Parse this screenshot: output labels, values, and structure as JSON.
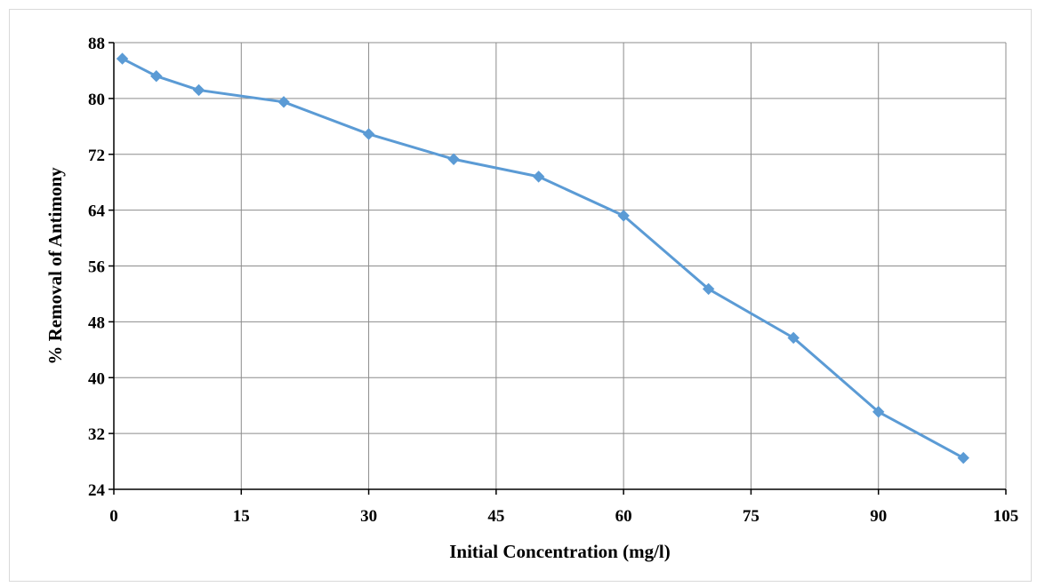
{
  "chart_data": {
    "type": "line",
    "title": "",
    "xlabel": "Initial Concentration (mg/l)",
    "ylabel": "% Removal of Antimony",
    "xlim": [
      0,
      105
    ],
    "ylim": [
      24,
      88
    ],
    "xticks": [
      0,
      15,
      30,
      45,
      60,
      75,
      90,
      105
    ],
    "yticks": [
      24,
      32,
      40,
      48,
      56,
      64,
      72,
      80,
      88
    ],
    "grid": true,
    "legend": "none",
    "marker": "diamond",
    "color": "#5b9bd5",
    "series": [
      {
        "x": [
          1,
          5,
          10,
          20,
          30,
          40,
          50,
          60,
          70,
          80,
          90,
          100
        ],
        "y": [
          85.7,
          83.2,
          81.2,
          79.5,
          74.9,
          71.3,
          68.8,
          63.2,
          52.7,
          45.7,
          35.1,
          28.5
        ]
      }
    ]
  }
}
